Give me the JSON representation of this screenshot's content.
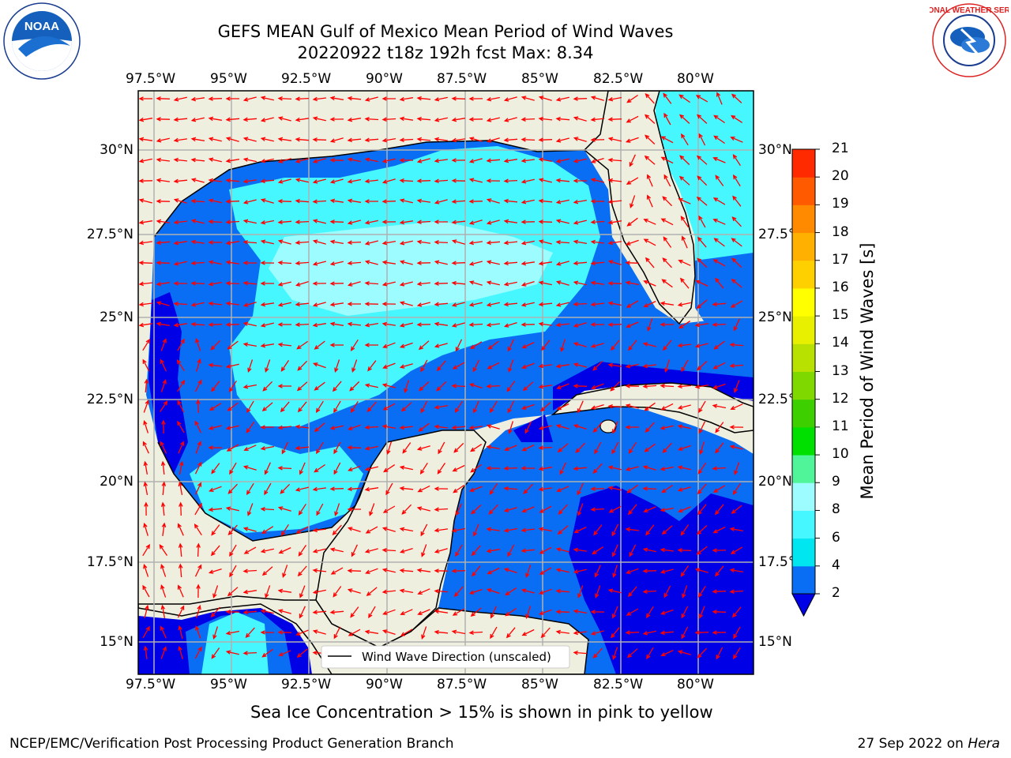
{
  "header": {
    "title_line1": "GEFS MEAN Gulf of Mexico Mean Period of Wind Waves",
    "title_line2": "20220922 t18z 192h fcst   Max: 8.34"
  },
  "logos": {
    "left_text": "NOAA",
    "left_ring_text": "NATIONAL OCEANIC AND ATMOSPHERIC ADMINISTRATION · U.S. DEPARTMENT OF COMMERCE",
    "right_ring_text": "NATIONAL WEATHER SERVICE"
  },
  "map": {
    "lon_labels": [
      "97.5°W",
      "95°W",
      "92.5°W",
      "90°W",
      "87.5°W",
      "85°W",
      "82.5°W",
      "80°W"
    ],
    "lat_labels_left": [
      "30°N",
      "27.5°N",
      "25°N",
      "22.5°N",
      "20°N",
      "17.5°N",
      "15°N"
    ],
    "lat_labels_right": [
      "30°N",
      "27.5°",
      "25°N",
      "22.5°",
      "20°N",
      "17.5°",
      "15°N"
    ],
    "legend_label": "Wind Wave Direction (unscaled)",
    "colors": {
      "land": "#efefdf",
      "grid": "#b0b0b0",
      "arrow": "#ff0000",
      "coast": "#000000"
    }
  },
  "colorbar": {
    "label": "Mean Period of Wind Waves [s]",
    "ticks": [
      "2",
      "4",
      "6",
      "8",
      "9",
      "10",
      "11",
      "12",
      "13",
      "14",
      "15",
      "16",
      "17",
      "18",
      "19",
      "20",
      "21"
    ],
    "colors": [
      "#0a6ef5",
      "#00e6f0",
      "#46f7ff",
      "#9dfcff",
      "#50f59a",
      "#00e000",
      "#3dcf00",
      "#7fd800",
      "#b8e000",
      "#e8f000",
      "#ffff00",
      "#ffd000",
      "#ffb000",
      "#ff8a00",
      "#ff5a00",
      "#ff2a00"
    ],
    "under_color": "#0000e6"
  },
  "footer": {
    "ice_note": "Sea Ice Concentration > 15% is shown in pink to yellow",
    "branch": "NCEP/EMC/Verification Post Processing Product Generation Branch",
    "date": "27 Sep 2022 on ",
    "machine": "Hera"
  }
}
